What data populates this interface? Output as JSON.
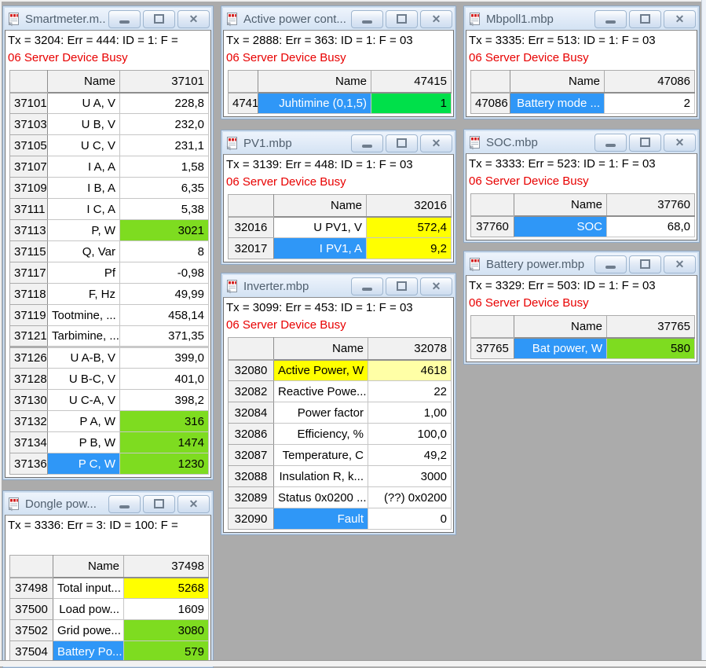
{
  "colors": {
    "green": "#7EDC20",
    "pure_green": "#00E04A",
    "yellow": "#FFFF00",
    "pale_yellow": "#FFFFA6",
    "selection_blue": "#2F97F7",
    "error_red": "#E80000",
    "mdi_background": "#ABABAB"
  },
  "icons": {
    "titlebar_document": "modbus-doc-icon",
    "minimize": "minimize-icon",
    "maximize": "maximize-icon",
    "close": "close-icon"
  },
  "windows": [
    {
      "title": "Smartmeter.m...",
      "status_line1": "Tx = 3204: Err = 444: ID = 1: F =",
      "status_line2": "06 Server Device Busy",
      "header": {
        "name": "Name",
        "value": "37101"
      },
      "rows": [
        {
          "a": "37101",
          "n": "U A, V",
          "v": "228,8"
        },
        {
          "a": "37103",
          "n": "U B, V",
          "v": "232,0"
        },
        {
          "a": "37105",
          "n": "U C, V",
          "v": "231,1"
        },
        {
          "a": "37107",
          "n": "I A, A",
          "v": "1,58"
        },
        {
          "a": "37109",
          "n": "I B, A",
          "v": "6,35"
        },
        {
          "a": "37111",
          "n": "I C, A",
          "v": "5,38"
        },
        {
          "a": "37113",
          "n": "P, W",
          "v": "3021",
          "vs": "green"
        },
        {
          "a": "37115",
          "n": "Q, Var",
          "v": "8"
        },
        {
          "a": "37117",
          "n": "Pf",
          "v": "-0,98"
        },
        {
          "a": "37118",
          "n": "F, Hz",
          "v": "49,99"
        },
        {
          "a": "37119",
          "n": "Tootmine, ...",
          "v": "458,14"
        },
        {
          "a": "37121",
          "n": "Tarbimine, ...",
          "v": "371,35"
        },
        {
          "a": "37126",
          "n": "U A-B, V",
          "v": "399,0",
          "gap": true
        },
        {
          "a": "37128",
          "n": "U B-C, V",
          "v": "401,0"
        },
        {
          "a": "37130",
          "n": "U C-A, V",
          "v": "398,2"
        },
        {
          "a": "37132",
          "n": "P A, W",
          "v": "316",
          "vs": "green"
        },
        {
          "a": "37134",
          "n": "P B, W",
          "v": "1474",
          "vs": "green"
        },
        {
          "a": "37136",
          "n": "P C, W",
          "v": "1230",
          "ns": "sel",
          "vs": "green"
        }
      ]
    },
    {
      "title": "Dongle pow...",
      "status_line1": "Tx = 3336: Err = 3: ID = 100: F =",
      "status_line2": "",
      "header": {
        "name": "Name",
        "value": "37498"
      },
      "rows": [
        {
          "a": "37498",
          "n": "Total input...",
          "v": "5268",
          "vs": "yellow"
        },
        {
          "a": "37500",
          "n": "Load pow...",
          "v": "1609"
        },
        {
          "a": "37502",
          "n": "Grid powe...",
          "v": "3080",
          "vs": "green"
        },
        {
          "a": "37504",
          "n": "Battery Po...",
          "v": "579",
          "ns": "sel",
          "vs": "green"
        }
      ]
    },
    {
      "title": "Active power cont...",
      "status_line1": "Tx = 2888: Err = 363: ID = 1: F = 03",
      "status_line2": "06 Server Device Busy",
      "header": {
        "name": "Name",
        "value": "47415"
      },
      "rows": [
        {
          "a": "47415",
          "n": "Juhtimine (0,1,5)",
          "v": "1",
          "ns": "sel",
          "vs": "puregreen"
        }
      ]
    },
    {
      "title": "PV1.mbp",
      "status_line1": "Tx = 3139: Err = 448: ID = 1: F = 03",
      "status_line2": "06 Server Device Busy",
      "header": {
        "name": "Name",
        "value": "32016"
      },
      "rows": [
        {
          "a": "32016",
          "n": "U PV1, V",
          "v": "572,4",
          "vs": "yellow"
        },
        {
          "a": "32017",
          "n": "I PV1, A",
          "v": "9,2",
          "ns": "sel",
          "vs": "yellow"
        }
      ]
    },
    {
      "title": "Inverter.mbp",
      "status_line1": "Tx = 3099: Err = 453: ID = 1: F = 03",
      "status_line2": "06 Server Device Busy",
      "header": {
        "name": "Name",
        "value": "32078"
      },
      "rows": [
        {
          "a": "32080",
          "n": "Active Power, W",
          "v": "4618",
          "ns": "yellow",
          "vs": "paleyellow"
        },
        {
          "a": "32082",
          "n": "Reactive Powe...",
          "v": "22"
        },
        {
          "a": "32084",
          "n": "Power factor",
          "v": "1,00"
        },
        {
          "a": "32086",
          "n": "Efficiency, %",
          "v": "100,0"
        },
        {
          "a": "32087",
          "n": "Temperature, C",
          "v": "49,2"
        },
        {
          "a": "32088",
          "n": "Insulation R, k...",
          "v": "3000"
        },
        {
          "a": "32089",
          "n": "Status 0x0200 ...",
          "v": "(??) 0x0200"
        },
        {
          "a": "32090",
          "n": "Fault",
          "v": "0",
          "ns": "sel"
        }
      ]
    },
    {
      "title": "Mbpoll1.mbp",
      "status_line1": "Tx = 3335: Err = 513: ID = 1: F = 03",
      "status_line2": "06 Server Device Busy",
      "header": {
        "name": "Name",
        "value": "47086"
      },
      "rows": [
        {
          "a": "47086",
          "n": "Battery mode ...",
          "v": "2",
          "ns": "sel"
        }
      ]
    },
    {
      "title": "SOC.mbp",
      "status_line1": "Tx = 3333: Err = 523: ID = 1: F = 03",
      "status_line2": "06 Server Device Busy",
      "header": {
        "name": "Name",
        "value": "37760"
      },
      "rows": [
        {
          "a": "37760",
          "n": "SOC",
          "v": "68,0",
          "ns": "sel"
        }
      ]
    },
    {
      "title": "Battery power.mbp",
      "status_line1": "Tx = 3329: Err = 503: ID = 1: F = 03",
      "status_line2": "06 Server Device Busy",
      "header": {
        "name": "Name",
        "value": "37765"
      },
      "rows": [
        {
          "a": "37765",
          "n": "Bat power, W",
          "v": "580",
          "ns": "sel",
          "vs": "green"
        }
      ]
    }
  ]
}
